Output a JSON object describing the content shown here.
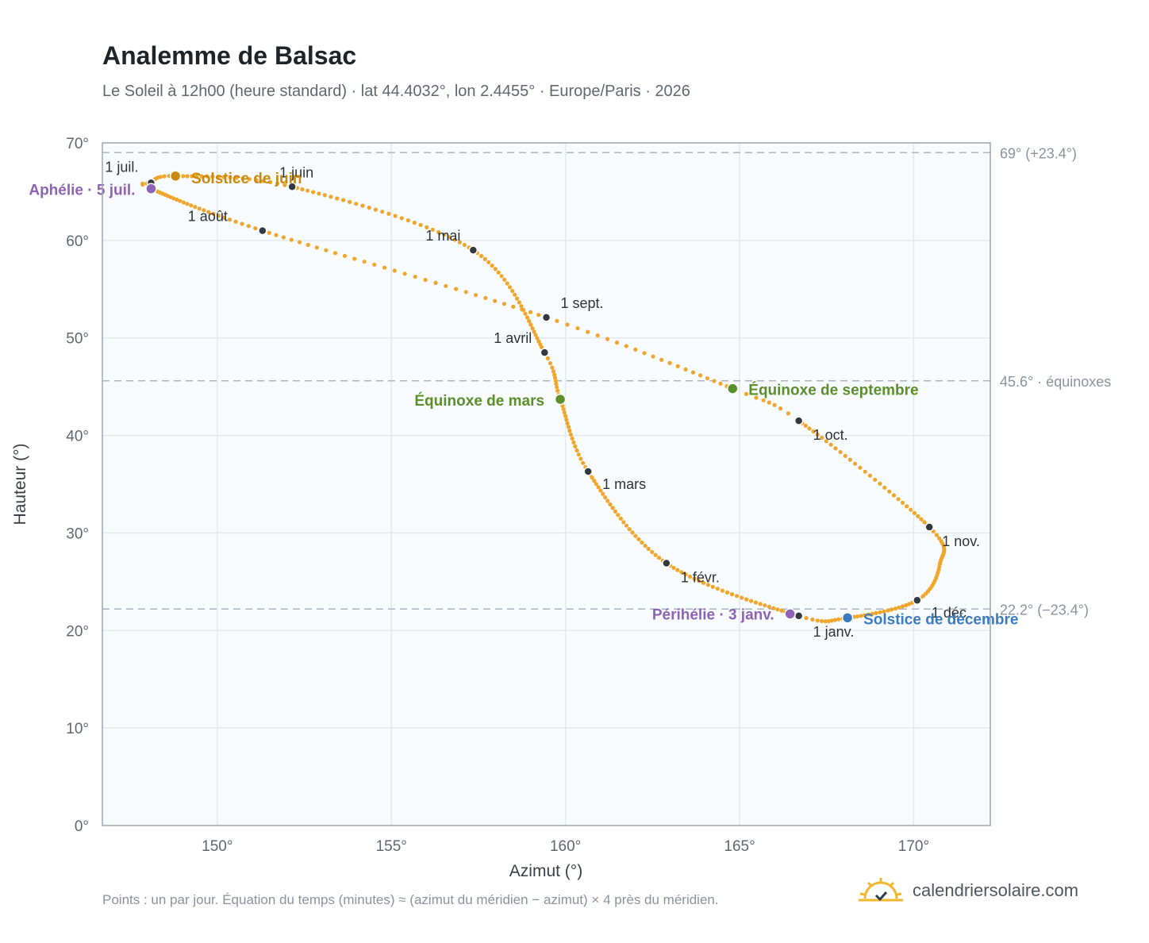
{
  "header": {
    "title": "Analemme de Balsac",
    "subtitle": "Le Soleil à 12h00 (heure standard) · lat 44.4032°, lon 2.4455° · Europe/Paris · 2026"
  },
  "footer": {
    "note": "Points : un par jour. Équation du temps (minutes) ≈ (azimut du méridien − azimut) × 4 près du méridien.",
    "brand": "calendriersolaire.com"
  },
  "chart_data": {
    "type": "scatter",
    "xlabel": "Azimut (°)",
    "ylabel": "Hauteur (°)",
    "xlim": [
      146.7,
      172.2
    ],
    "ylim": [
      0,
      70
    ],
    "x_ticks": [
      {
        "value": 150,
        "label": "150°"
      },
      {
        "value": 155,
        "label": "155°"
      },
      {
        "value": 160,
        "label": "160°"
      },
      {
        "value": 165,
        "label": "165°"
      },
      {
        "value": 170,
        "label": "170°"
      }
    ],
    "y_ticks": [
      {
        "value": 0,
        "label": "0°"
      },
      {
        "value": 10,
        "label": "10°"
      },
      {
        "value": 20,
        "label": "20°"
      },
      {
        "value": 30,
        "label": "30°"
      },
      {
        "value": 40,
        "label": "40°"
      },
      {
        "value": 50,
        "label": "50°"
      },
      {
        "value": 60,
        "label": "60°"
      },
      {
        "value": 70,
        "label": "70°"
      }
    ],
    "grid": true,
    "series": [
      {
        "color": "#f0a52c",
        "daily_points": "one per day (interpolated between monthly anchors)",
        "anchors": [
          {
            "day": 0,
            "x": 166.7,
            "y": 21.5
          },
          {
            "day": 31,
            "x": 162.9,
            "y": 26.9
          },
          {
            "day": 59,
            "x": 160.65,
            "y": 36.3
          },
          {
            "day": 78,
            "x": 159.85,
            "y": 43.7
          },
          {
            "day": 90,
            "x": 159.4,
            "y": 48.5
          },
          {
            "day": 120,
            "x": 157.35,
            "y": 59.0
          },
          {
            "day": 151,
            "x": 152.15,
            "y": 65.5
          },
          {
            "day": 171,
            "x": 148.8,
            "y": 66.6
          },
          {
            "day": 181,
            "x": 148.1,
            "y": 65.9
          },
          {
            "day": 185,
            "x": 148.1,
            "y": 65.3
          },
          {
            "day": 212,
            "x": 151.3,
            "y": 61.0
          },
          {
            "day": 243,
            "x": 159.45,
            "y": 52.1
          },
          {
            "day": 265,
            "x": 164.8,
            "y": 44.8
          },
          {
            "day": 273,
            "x": 166.7,
            "y": 41.5
          },
          {
            "day": 304,
            "x": 170.45,
            "y": 30.6
          },
          {
            "day": 320,
            "x": 170.75,
            "y": 26.8
          },
          {
            "day": 334,
            "x": 170.1,
            "y": 23.1
          },
          {
            "day": 354,
            "x": 168.1,
            "y": 21.3
          },
          {
            "day": 365,
            "x": 166.7,
            "y": 21.5
          }
        ]
      }
    ],
    "month_markers": [
      {
        "label": "1 janv.",
        "x": 166.7,
        "y": 21.5
      },
      {
        "label": "1 févr.",
        "x": 162.9,
        "y": 26.9
      },
      {
        "label": "1 mars",
        "x": 160.65,
        "y": 36.3
      },
      {
        "label": "1 avril",
        "x": 159.4,
        "y": 48.5
      },
      {
        "label": "1 mai",
        "x": 157.35,
        "y": 59.0
      },
      {
        "label": "1 juin",
        "x": 152.15,
        "y": 65.5
      },
      {
        "label": "1 juil.",
        "x": 148.1,
        "y": 65.9
      },
      {
        "label": "1 août",
        "x": 151.3,
        "y": 61.0
      },
      {
        "label": "1 sept.",
        "x": 159.45,
        "y": 52.1
      },
      {
        "label": "1 oct.",
        "x": 166.7,
        "y": 41.5
      },
      {
        "label": "1 nov.",
        "x": 170.45,
        "y": 30.6
      },
      {
        "label": "1 déc.",
        "x": 170.1,
        "y": 23.1
      }
    ],
    "events": [
      {
        "label": "Solstice de juin",
        "x": 148.8,
        "y": 66.6,
        "color": "#c98a10"
      },
      {
        "label": "Aphélie · 5 juil.",
        "x": 148.1,
        "y": 65.3,
        "color": "#8e63b5"
      },
      {
        "label": "Équinoxe de mars",
        "x": 159.85,
        "y": 43.7,
        "color": "#5a8f2c"
      },
      {
        "label": "Équinoxe de septembre",
        "x": 164.8,
        "y": 44.8,
        "color": "#5a8f2c"
      },
      {
        "label": "Périhélie · 3 janv.",
        "x": 166.45,
        "y": 21.7,
        "color": "#8e63b5"
      },
      {
        "label": "Solstice de décembre",
        "x": 168.1,
        "y": 21.3,
        "color": "#3b7bbf"
      }
    ],
    "reference_lines": [
      {
        "y": 69.0,
        "label": "69° (+23.4°)"
      },
      {
        "y": 45.6,
        "label": "45.6° · équinoxes"
      },
      {
        "y": 22.2,
        "label": "22.2° (−23.4°)"
      }
    ],
    "colors": {
      "curve": "#f0a52c",
      "month_marker": "#333940",
      "plot_background": "#f8fbfd",
      "grid": "#e1e8ee",
      "reference_line": "#a9b6c2",
      "frame": "#9aa6b2"
    }
  }
}
